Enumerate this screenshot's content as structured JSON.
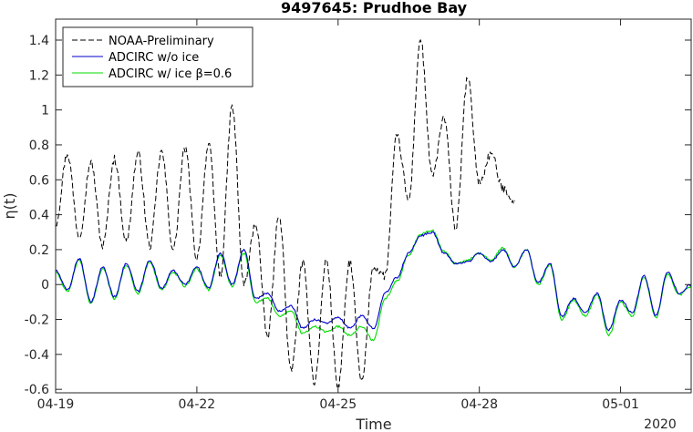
{
  "chart_data": {
    "type": "line",
    "title": "9497645: Prudhoe Bay",
    "xlabel": "Time",
    "ylabel": "η(t)",
    "x_unit": "days",
    "xlim": [
      "2020-04-19",
      "2020-05-02T12:00"
    ],
    "ylim": [
      -0.62,
      1.52
    ],
    "grid": false,
    "legend_position": "top-left",
    "x_ticks": [
      {
        "value": "2020-04-19",
        "label": "04-19"
      },
      {
        "value": "2020-04-22",
        "label": "04-22"
      },
      {
        "value": "2020-04-25",
        "label": "04-25"
      },
      {
        "value": "2020-04-28",
        "label": "04-28"
      },
      {
        "value": "2020-05-01",
        "label": "05-01"
      }
    ],
    "x_secondary_label": "2020",
    "y_ticks": [
      -0.6,
      -0.4,
      -0.2,
      0,
      0.2,
      0.4,
      0.6,
      0.8,
      1,
      1.2,
      1.4
    ],
    "series": [
      {
        "name": "NOAA-Preliminary",
        "color": "#000000",
        "style": "dashed",
        "x": [
          "2020-04-19T00:00",
          "2020-04-19T06:00",
          "2020-04-19T12:00",
          "2020-04-19T18:00",
          "2020-04-20T00:00",
          "2020-04-20T06:00",
          "2020-04-20T12:00",
          "2020-04-20T18:00",
          "2020-04-21T00:00",
          "2020-04-21T06:00",
          "2020-04-21T12:00",
          "2020-04-21T18:00",
          "2020-04-22T00:00",
          "2020-04-22T06:00",
          "2020-04-22T12:00",
          "2020-04-22T18:00",
          "2020-04-23T00:00",
          "2020-04-23T06:00",
          "2020-04-23T12:00",
          "2020-04-23T18:00",
          "2020-04-24T00:00",
          "2020-04-24T06:00",
          "2020-04-24T12:00",
          "2020-04-24T18:00",
          "2020-04-25T00:00",
          "2020-04-25T06:00",
          "2020-04-25T12:00",
          "2020-04-25T18:00",
          "2020-04-26T00:00",
          "2020-04-26T06:00",
          "2020-04-26T12:00",
          "2020-04-26T18:00",
          "2020-04-27T00:00",
          "2020-04-27T06:00",
          "2020-04-27T12:00",
          "2020-04-27T18:00",
          "2020-04-28T00:00",
          "2020-04-28T06:00",
          "2020-04-28T12:00",
          "2020-04-28T18:00"
        ],
        "values": [
          0.35,
          0.75,
          0.28,
          0.7,
          0.22,
          0.72,
          0.25,
          0.75,
          0.22,
          0.76,
          0.2,
          0.78,
          0.15,
          0.8,
          0.05,
          1.02,
          0.0,
          0.35,
          -0.3,
          0.4,
          -0.5,
          0.12,
          -0.56,
          0.14,
          -0.58,
          0.13,
          -0.56,
          0.1,
          0.05,
          0.85,
          0.48,
          1.4,
          0.62,
          0.95,
          0.32,
          1.18,
          0.58,
          0.75,
          0.55,
          0.48
        ]
      },
      {
        "name": "ADCIRC w/o ice",
        "color": "#0000cd",
        "style": "solid",
        "x": [
          "2020-04-19T00:00",
          "2020-04-19T06:00",
          "2020-04-19T12:00",
          "2020-04-19T18:00",
          "2020-04-20T00:00",
          "2020-04-20T06:00",
          "2020-04-20T12:00",
          "2020-04-20T18:00",
          "2020-04-21T00:00",
          "2020-04-21T06:00",
          "2020-04-21T12:00",
          "2020-04-21T18:00",
          "2020-04-22T00:00",
          "2020-04-22T06:00",
          "2020-04-22T12:00",
          "2020-04-22T18:00",
          "2020-04-23T00:00",
          "2020-04-23T06:00",
          "2020-04-23T12:00",
          "2020-04-23T18:00",
          "2020-04-24T00:00",
          "2020-04-24T06:00",
          "2020-04-24T12:00",
          "2020-04-24T18:00",
          "2020-04-25T00:00",
          "2020-04-25T06:00",
          "2020-04-25T12:00",
          "2020-04-25T18:00",
          "2020-04-26T00:00",
          "2020-04-26T06:00",
          "2020-04-26T12:00",
          "2020-04-26T18:00",
          "2020-04-27T00:00",
          "2020-04-27T06:00",
          "2020-04-27T12:00",
          "2020-04-27T18:00",
          "2020-04-28T00:00",
          "2020-04-28T06:00",
          "2020-04-28T12:00",
          "2020-04-28T18:00",
          "2020-04-29T00:00",
          "2020-04-29T06:00",
          "2020-04-29T12:00",
          "2020-04-29T18:00",
          "2020-04-30T00:00",
          "2020-04-30T06:00",
          "2020-04-30T12:00",
          "2020-04-30T18:00",
          "2020-05-01T00:00",
          "2020-05-01T06:00",
          "2020-05-01T12:00",
          "2020-05-01T18:00",
          "2020-05-02T00:00",
          "2020-05-02T06:00",
          "2020-05-02T12:00"
        ],
        "values": [
          0.08,
          -0.03,
          0.15,
          -0.1,
          0.1,
          -0.07,
          0.12,
          -0.04,
          0.14,
          -0.02,
          0.08,
          0.0,
          0.1,
          -0.02,
          0.18,
          0.0,
          0.2,
          -0.08,
          -0.05,
          -0.15,
          -0.12,
          -0.25,
          -0.2,
          -0.22,
          -0.19,
          -0.25,
          -0.18,
          -0.25,
          -0.05,
          0.04,
          0.18,
          0.28,
          0.3,
          0.18,
          0.12,
          0.13,
          0.18,
          0.13,
          0.2,
          0.1,
          0.2,
          0.01,
          0.12,
          -0.18,
          -0.08,
          -0.16,
          -0.05,
          -0.26,
          -0.09,
          -0.16,
          0.05,
          -0.18,
          0.07,
          -0.05,
          0.0
        ]
      },
      {
        "name": "ADCIRC w/ ice β=0.6",
        "color": "#00dd00",
        "style": "solid",
        "x": [
          "2020-04-19T00:00",
          "2020-04-19T06:00",
          "2020-04-19T12:00",
          "2020-04-19T18:00",
          "2020-04-20T00:00",
          "2020-04-20T06:00",
          "2020-04-20T12:00",
          "2020-04-20T18:00",
          "2020-04-21T00:00",
          "2020-04-21T06:00",
          "2020-04-21T12:00",
          "2020-04-21T18:00",
          "2020-04-22T00:00",
          "2020-04-22T06:00",
          "2020-04-22T12:00",
          "2020-04-22T18:00",
          "2020-04-23T00:00",
          "2020-04-23T06:00",
          "2020-04-23T12:00",
          "2020-04-23T18:00",
          "2020-04-24T00:00",
          "2020-04-24T06:00",
          "2020-04-24T12:00",
          "2020-04-24T18:00",
          "2020-04-25T00:00",
          "2020-04-25T06:00",
          "2020-04-25T12:00",
          "2020-04-25T18:00",
          "2020-04-26T00:00",
          "2020-04-26T06:00",
          "2020-04-26T12:00",
          "2020-04-26T18:00",
          "2020-04-27T00:00",
          "2020-04-27T06:00",
          "2020-04-27T12:00",
          "2020-04-27T18:00",
          "2020-04-28T00:00",
          "2020-04-28T06:00",
          "2020-04-28T12:00",
          "2020-04-28T18:00",
          "2020-04-29T00:00",
          "2020-04-29T06:00",
          "2020-04-29T12:00",
          "2020-04-29T18:00",
          "2020-04-30T00:00",
          "2020-04-30T06:00",
          "2020-04-30T12:00",
          "2020-04-30T18:00",
          "2020-05-01T00:00",
          "2020-05-01T06:00",
          "2020-05-01T12:00",
          "2020-05-01T18:00",
          "2020-05-02T00:00",
          "2020-05-02T06:00",
          "2020-05-02T12:00"
        ],
        "values": [
          0.07,
          -0.04,
          0.14,
          -0.11,
          0.09,
          -0.08,
          0.11,
          -0.05,
          0.13,
          -0.03,
          0.07,
          -0.01,
          0.09,
          -0.03,
          0.17,
          -0.01,
          0.18,
          -0.1,
          -0.08,
          -0.18,
          -0.15,
          -0.28,
          -0.24,
          -0.27,
          -0.24,
          -0.29,
          -0.24,
          -0.32,
          -0.08,
          0.02,
          0.17,
          0.29,
          0.31,
          0.19,
          0.12,
          0.14,
          0.18,
          0.14,
          0.21,
          0.1,
          0.2,
          0.0,
          0.11,
          -0.2,
          -0.09,
          -0.18,
          -0.06,
          -0.29,
          -0.1,
          -0.18,
          0.04,
          -0.19,
          0.06,
          -0.06,
          -0.01
        ]
      }
    ]
  }
}
